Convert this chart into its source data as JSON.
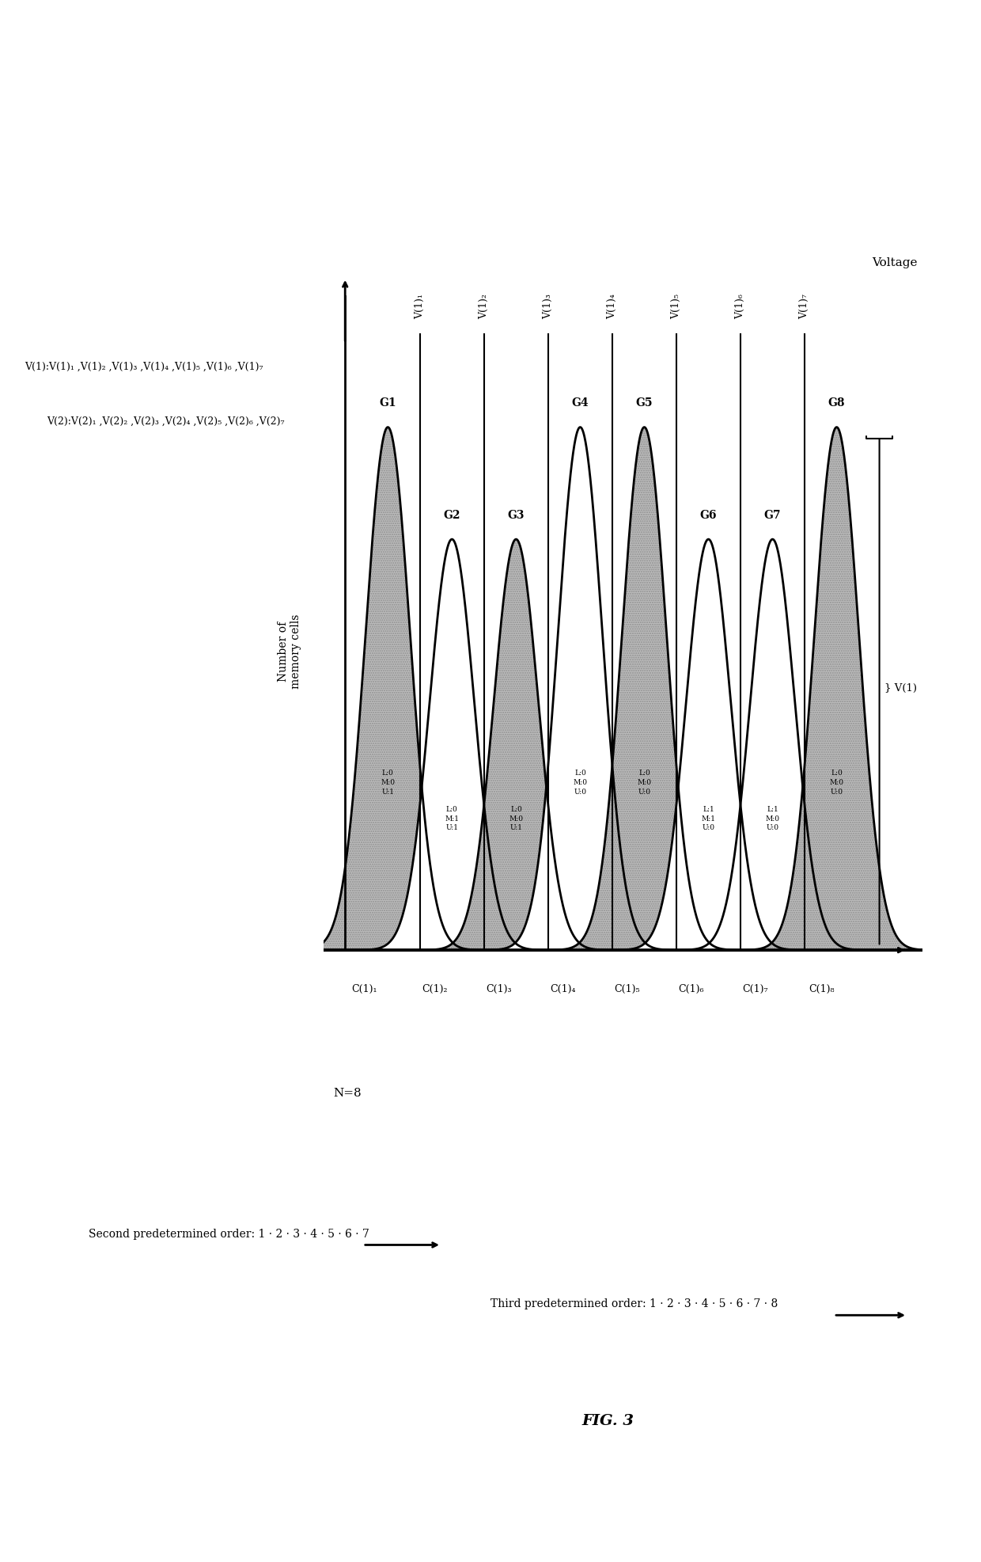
{
  "num_peaks": 8,
  "peak_centers": [
    1.0,
    2.5,
    4.0,
    5.5,
    7.0,
    8.5,
    10.0,
    11.5
  ],
  "peak_heights": [
    2.8,
    2.2,
    2.2,
    2.8,
    2.8,
    2.2,
    2.2,
    2.8
  ],
  "peak_widths": [
    0.52,
    0.52,
    0.52,
    0.52,
    0.52,
    0.52,
    0.52,
    0.52
  ],
  "shaded_peaks": [
    0,
    2,
    4,
    7
  ],
  "voltage_lines": [
    1.75,
    3.25,
    4.75,
    6.25,
    7.75,
    9.25,
    10.75
  ],
  "voltage_labels": [
    "V(1)₁",
    "V(1)₂",
    "V(1)₃",
    "V(1)₄",
    "V(1)₅",
    "V(1)₆",
    "V(1)₇"
  ],
  "group_labels": [
    "G1",
    "G2",
    "G3",
    "G4",
    "G5",
    "G6",
    "G7",
    "G8"
  ],
  "c_labels": [
    "C(1)₁",
    "C(1)₂",
    "C(1)₃",
    "C(1)₄",
    "C(1)₅",
    "C(1)₆",
    "C(1)₇",
    "C(1)₈"
  ],
  "c_positions": [
    0.45,
    2.1,
    3.6,
    5.1,
    6.6,
    8.1,
    9.6,
    11.15
  ],
  "peak_annotations": [
    [
      "L:0",
      "M:0",
      "U:1"
    ],
    [
      "L:0",
      "M:1",
      "U:1"
    ],
    [
      "L:0",
      "M:0",
      "U:1"
    ],
    [
      "L:0",
      "M:0",
      "U:0"
    ],
    [
      "L:0",
      "M:0",
      "U:0"
    ],
    [
      "L:1",
      "M:1",
      "U:0"
    ],
    [
      "L:1",
      "M:0",
      "U:0"
    ],
    [
      "L:0",
      "M:0",
      "U:0"
    ]
  ],
  "n_label": "N=8",
  "second_order_label": "Second predetermined order:",
  "second_order_seq": "1 · 2 · 3 · 4 · 5 · 6 · 7",
  "third_order_label": "Third predetermined order:",
  "third_order_seq": "1 · 2 · 3 · 4 · 5 · 6 · 7 · 8",
  "fig_label": "FIG. 3",
  "x_axis_label": "Voltage",
  "y_axis_label": "Number of\nmemory cells",
  "v1_prefix": "V(1):",
  "v1_seq": "V(1)₁ ,V(1)₂ ,V(1)₃ ,V(1)₄ ,V(1)₅ ,V(1)₆ ,V(1)₇",
  "v2_prefix": "V(2):",
  "v2_seq": "V(2)₁ ,V(2)₂ ,V(2)₃ ,V(2)₄ ,V(2)₅ ,V(2)₆ ,V(2)₇",
  "brace_label": "} V(1)",
  "xlim_min": -0.5,
  "xlim_max": 13.5,
  "ylim_min": -0.6,
  "ylim_max": 4.0
}
